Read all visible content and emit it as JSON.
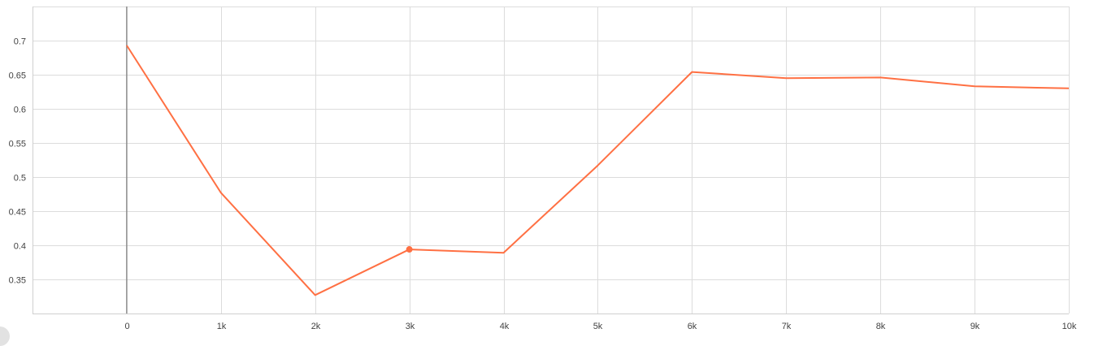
{
  "chart_data": {
    "type": "line",
    "title": "",
    "xlabel": "",
    "ylabel": "",
    "x": [
      0,
      1000,
      2000,
      3000,
      4000,
      5000,
      6000,
      7000,
      8000,
      9000,
      10000
    ],
    "series": [
      {
        "color": "#ff7043",
        "values": [
          0.693,
          0.477,
          0.327,
          0.394,
          0.389,
          0.517,
          0.654,
          0.645,
          0.646,
          0.633,
          0.63
        ]
      }
    ],
    "highlight_index": 3,
    "xlim": [
      -1000,
      10000
    ],
    "ylim": [
      0.3,
      0.75
    ],
    "x_ticks": [
      0,
      1000,
      2000,
      3000,
      4000,
      5000,
      6000,
      7000,
      8000,
      9000,
      10000
    ],
    "x_tick_labels": [
      "0",
      "1k",
      "2k",
      "3k",
      "4k",
      "5k",
      "6k",
      "7k",
      "8k",
      "9k",
      "10k"
    ],
    "y_ticks": [
      0.35,
      0.4,
      0.45,
      0.5,
      0.55,
      0.6,
      0.65,
      0.7
    ],
    "y_tick_labels": [
      "0.35",
      "0.4",
      "0.45",
      "0.5",
      "0.55",
      "0.6",
      "0.65",
      "0.7"
    ],
    "grid": true,
    "legend": "none"
  }
}
